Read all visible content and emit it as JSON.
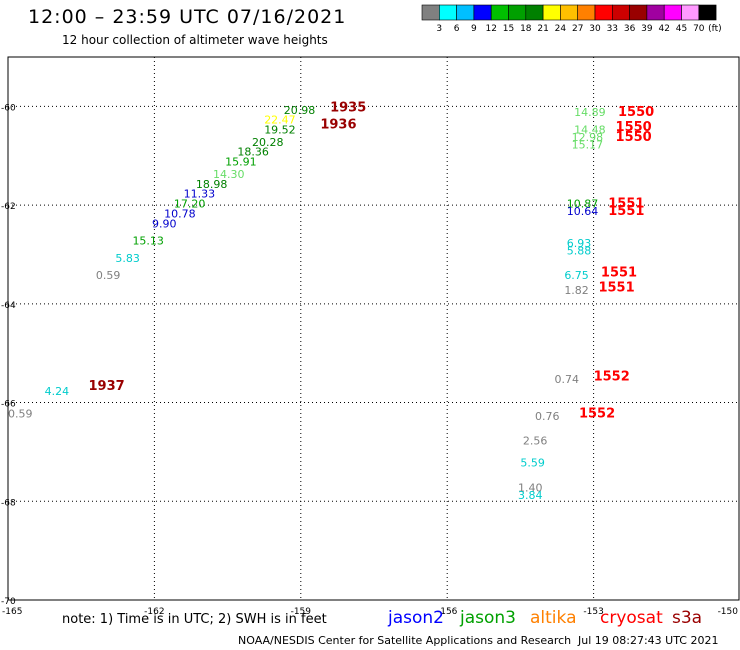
{
  "title": "12:00 – 23:59 UTC 07/16/2021",
  "subtitle": "12 hour collection of altimeter wave heights",
  "colorbar": {
    "unit": "(ft)",
    "ticks": [
      "3",
      "6",
      "9",
      "12",
      "15",
      "18",
      "21",
      "24",
      "27",
      "30",
      "33",
      "36",
      "39",
      "42",
      "45",
      "70"
    ],
    "colors": [
      "#808080",
      "#00ffff",
      "#00bfff",
      "#0000ff",
      "#00c000",
      "#00a000",
      "#008000",
      "#ffff00",
      "#ffc000",
      "#ff8000",
      "#ff0000",
      "#cc0000",
      "#990000",
      "#a000a0",
      "#ff00ff",
      "#ff99ff",
      "#000000"
    ]
  },
  "note": "note: 1) Time is in UTC; 2) SWH is in feet",
  "satellites": [
    {
      "name": "jason2",
      "color": "#0000ff"
    },
    {
      "name": "jason3",
      "color": "#00a000"
    },
    {
      "name": "altika",
      "color": "#ff8000"
    },
    {
      "name": "cryosat",
      "color": "#ff0000"
    },
    {
      "name": "s3a",
      "color": "#990000"
    }
  ],
  "credit": "NOAA/NESDIS Center for Satellite Applications and Research",
  "timestamp": "Jul 19 08:27:43 UTC 2021",
  "chart_data": {
    "type": "scatter",
    "title": "12:00 – 23:59 UTC 07/16/2021",
    "subtitle": "12 hour collection of altimeter wave heights",
    "xlim": [
      -165,
      -150
    ],
    "ylim": [
      -70,
      -59
    ],
    "x_ticks": [
      "-165",
      "-162",
      "-159",
      "-156",
      "-153",
      "-150"
    ],
    "y_ticks": [
      "-60",
      "-62",
      "-64",
      "-66",
      "-68",
      "-70"
    ],
    "grid": true,
    "swh_points": [
      {
        "lon": -159.35,
        "lat": -60.15,
        "swh": "20.98",
        "color": "#008000"
      },
      {
        "lon": -159.75,
        "lat": -60.35,
        "swh": "22.47",
        "color": "#ffff00"
      },
      {
        "lon": -159.75,
        "lat": -60.55,
        "swh": "19.52",
        "color": "#008000"
      },
      {
        "lon": -160.0,
        "lat": -60.8,
        "swh": "20.28",
        "color": "#008000"
      },
      {
        "lon": -160.3,
        "lat": -61.0,
        "swh": "18.36",
        "color": "#008000"
      },
      {
        "lon": -160.55,
        "lat": -61.2,
        "swh": "15.91",
        "color": "#00a000"
      },
      {
        "lon": -160.8,
        "lat": -61.45,
        "swh": "14.30",
        "color": "#66dd66"
      },
      {
        "lon": -161.15,
        "lat": -61.65,
        "swh": "18.98",
        "color": "#008000"
      },
      {
        "lon": -161.4,
        "lat": -61.85,
        "swh": "11.33",
        "color": "#0000cc"
      },
      {
        "lon": -161.6,
        "lat": -62.05,
        "swh": "17.20",
        "color": "#00a000"
      },
      {
        "lon": -161.8,
        "lat": -62.25,
        "swh": "10.78",
        "color": "#0000cc"
      },
      {
        "lon": -162.05,
        "lat": -62.45,
        "swh": "9.90",
        "color": "#0000cc"
      },
      {
        "lon": -162.45,
        "lat": -62.8,
        "swh": "15.13",
        "color": "#00a000"
      },
      {
        "lon": -162.8,
        "lat": -63.15,
        "swh": "5.83",
        "color": "#00cccc"
      },
      {
        "lon": -163.2,
        "lat": -63.5,
        "swh": "0.59",
        "color": "#808080"
      },
      {
        "lon": -164.25,
        "lat": -65.85,
        "swh": "4.24",
        "color": "#00cccc"
      },
      {
        "lon": -165.0,
        "lat": -66.3,
        "swh": "0.59",
        "color": "#808080"
      },
      {
        "lon": -153.4,
        "lat": -60.2,
        "swh": "14.89",
        "color": "#66dd66"
      },
      {
        "lon": -153.4,
        "lat": -60.55,
        "swh": "14.48",
        "color": "#66dd66"
      },
      {
        "lon": -153.45,
        "lat": -60.7,
        "swh": "12.98",
        "color": "#66dd66"
      },
      {
        "lon": -153.45,
        "lat": -60.85,
        "swh": "15.17",
        "color": "#66dd66"
      },
      {
        "lon": -153.55,
        "lat": -62.05,
        "swh": "10.87",
        "color": "#00a000"
      },
      {
        "lon": -153.55,
        "lat": -62.2,
        "swh": "10.64",
        "color": "#0000cc"
      },
      {
        "lon": -153.55,
        "lat": -62.85,
        "swh": "6.93",
        "color": "#00cccc"
      },
      {
        "lon": -153.55,
        "lat": -63.0,
        "swh": "5.88",
        "color": "#00cccc"
      },
      {
        "lon": -153.6,
        "lat": -63.5,
        "swh": "6.75",
        "color": "#00cccc"
      },
      {
        "lon": -153.6,
        "lat": -63.8,
        "swh": "1.82",
        "color": "#808080"
      },
      {
        "lon": -153.8,
        "lat": -65.6,
        "swh": "0.74",
        "color": "#808080"
      },
      {
        "lon": -154.2,
        "lat": -66.35,
        "swh": "0.76",
        "color": "#808080"
      },
      {
        "lon": -154.45,
        "lat": -66.85,
        "swh": "2.56",
        "color": "#808080"
      },
      {
        "lon": -154.5,
        "lat": -67.3,
        "swh": "5.59",
        "color": "#00cccc"
      },
      {
        "lon": -154.55,
        "lat": -67.8,
        "swh": "1.40",
        "color": "#808080"
      },
      {
        "lon": -154.55,
        "lat": -67.95,
        "swh": "3.84",
        "color": "#00cccc"
      }
    ],
    "time_labels": [
      {
        "lon": -158.4,
        "lat": -60.1,
        "text": "1935",
        "color": "#990000"
      },
      {
        "lon": -158.6,
        "lat": -60.45,
        "text": "1936",
        "color": "#990000"
      },
      {
        "lon": -163.35,
        "lat": -65.75,
        "text": "1937",
        "color": "#990000"
      },
      {
        "lon": -152.5,
        "lat": -60.2,
        "text": "1550",
        "color": "#ff0000"
      },
      {
        "lon": -152.55,
        "lat": -60.5,
        "text": "1550",
        "color": "#ff0000"
      },
      {
        "lon": -152.55,
        "lat": -60.7,
        "text": "1550",
        "color": "#ff0000"
      },
      {
        "lon": -152.7,
        "lat": -62.05,
        "text": "1551",
        "color": "#ff0000"
      },
      {
        "lon": -152.7,
        "lat": -62.2,
        "text": "1551",
        "color": "#ff0000"
      },
      {
        "lon": -152.85,
        "lat": -63.45,
        "text": "1551",
        "color": "#ff0000"
      },
      {
        "lon": -152.9,
        "lat": -63.75,
        "text": "1551",
        "color": "#ff0000"
      },
      {
        "lon": -153.0,
        "lat": -65.55,
        "text": "1552",
        "color": "#ff0000"
      },
      {
        "lon": -153.3,
        "lat": -66.3,
        "text": "1552",
        "color": "#ff0000"
      }
    ]
  }
}
